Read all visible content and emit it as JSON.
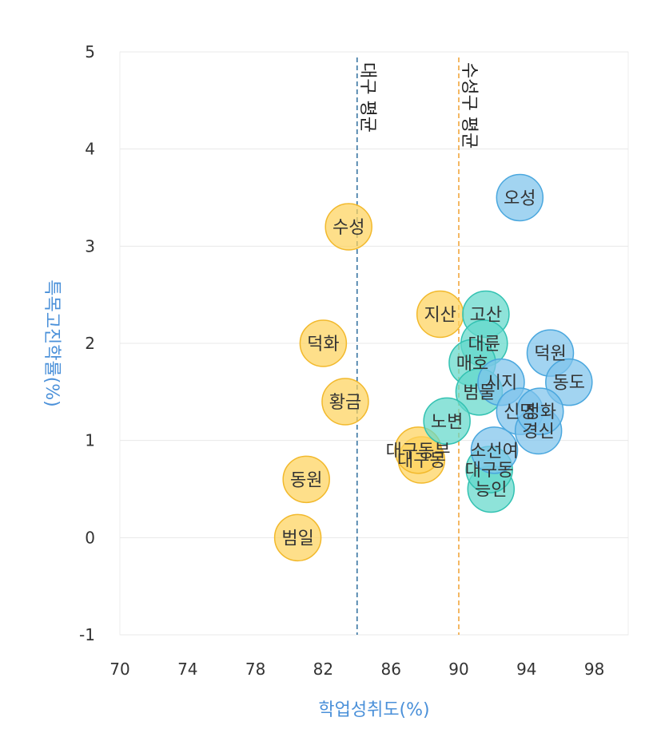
{
  "colors": {
    "yellow_fill": "#fdd25d",
    "yellow_stroke": "#f2b92c",
    "teal_fill": "#63d8cb",
    "teal_stroke": "#33c2b2",
    "blue_fill": "#7ec3ec",
    "blue_stroke": "#4aa7de",
    "daegu_line": "#2f6e9e",
    "suseong_line": "#f0a030",
    "axis_title": "#4a90d9",
    "grid": "#e8e8e8"
  },
  "chart_data": {
    "type": "scatter",
    "xlabel": "학업성취도(%)",
    "ylabel": "특목고진학률(%)",
    "xlim": [
      70,
      100
    ],
    "ylim": [
      -1,
      5
    ],
    "x_ticks": [
      70,
      74,
      78,
      82,
      86,
      90,
      94,
      98
    ],
    "y_ticks": [
      -1,
      0,
      1,
      2,
      3,
      4,
      5
    ],
    "grid": "horizontal",
    "reference_lines": [
      {
        "label": "대구 평균",
        "x": 84,
        "color": "#2f6e9e"
      },
      {
        "label": "수성구 평균",
        "x": 90,
        "color": "#f0a030"
      }
    ],
    "points": [
      {
        "label": "범일",
        "x": 80.5,
        "y": 0.0,
        "group": "yellow"
      },
      {
        "label": "동원",
        "x": 81.0,
        "y": 0.6,
        "group": "yellow"
      },
      {
        "label": "덕화",
        "x": 82.0,
        "y": 2.0,
        "group": "yellow"
      },
      {
        "label": "황금",
        "x": 83.3,
        "y": 1.4,
        "group": "yellow"
      },
      {
        "label": "수성",
        "x": 83.5,
        "y": 3.2,
        "group": "yellow"
      },
      {
        "label": "지산",
        "x": 88.9,
        "y": 2.3,
        "group": "yellow"
      },
      {
        "label": "대구동",
        "x": 87.8,
        "y": 0.8,
        "group": "yellow"
      },
      {
        "label": "대구동부",
        "x": 87.6,
        "y": 0.9,
        "group": "yellow"
      },
      {
        "label": "고산",
        "x": 91.6,
        "y": 2.3,
        "group": "teal"
      },
      {
        "label": "대륜",
        "x": 91.5,
        "y": 2.0,
        "group": "teal"
      },
      {
        "label": "매호",
        "x": 90.8,
        "y": 1.8,
        "group": "teal"
      },
      {
        "label": "범물",
        "x": 91.2,
        "y": 1.5,
        "group": "teal"
      },
      {
        "label": "노변",
        "x": 89.3,
        "y": 1.2,
        "group": "teal"
      },
      {
        "label": "능인",
        "x": 91.9,
        "y": 0.5,
        "group": "teal"
      },
      {
        "label": "대구동",
        "x": 91.8,
        "y": 0.7,
        "group": "teal"
      },
      {
        "label": "오성",
        "x": 93.6,
        "y": 3.5,
        "group": "blue"
      },
      {
        "label": "덕원",
        "x": 95.4,
        "y": 1.9,
        "group": "blue"
      },
      {
        "label": "동도",
        "x": 96.5,
        "y": 1.6,
        "group": "blue"
      },
      {
        "label": "시지",
        "x": 92.5,
        "y": 1.6,
        "group": "blue"
      },
      {
        "label": "신명",
        "x": 93.6,
        "y": 1.3,
        "group": "blue"
      },
      {
        "label": "경신",
        "x": 94.7,
        "y": 1.1,
        "group": "blue"
      },
      {
        "label": "정화",
        "x": 94.8,
        "y": 1.3,
        "group": "blue"
      },
      {
        "label": "소선여",
        "x": 92.1,
        "y": 0.9,
        "group": "blue"
      }
    ]
  }
}
